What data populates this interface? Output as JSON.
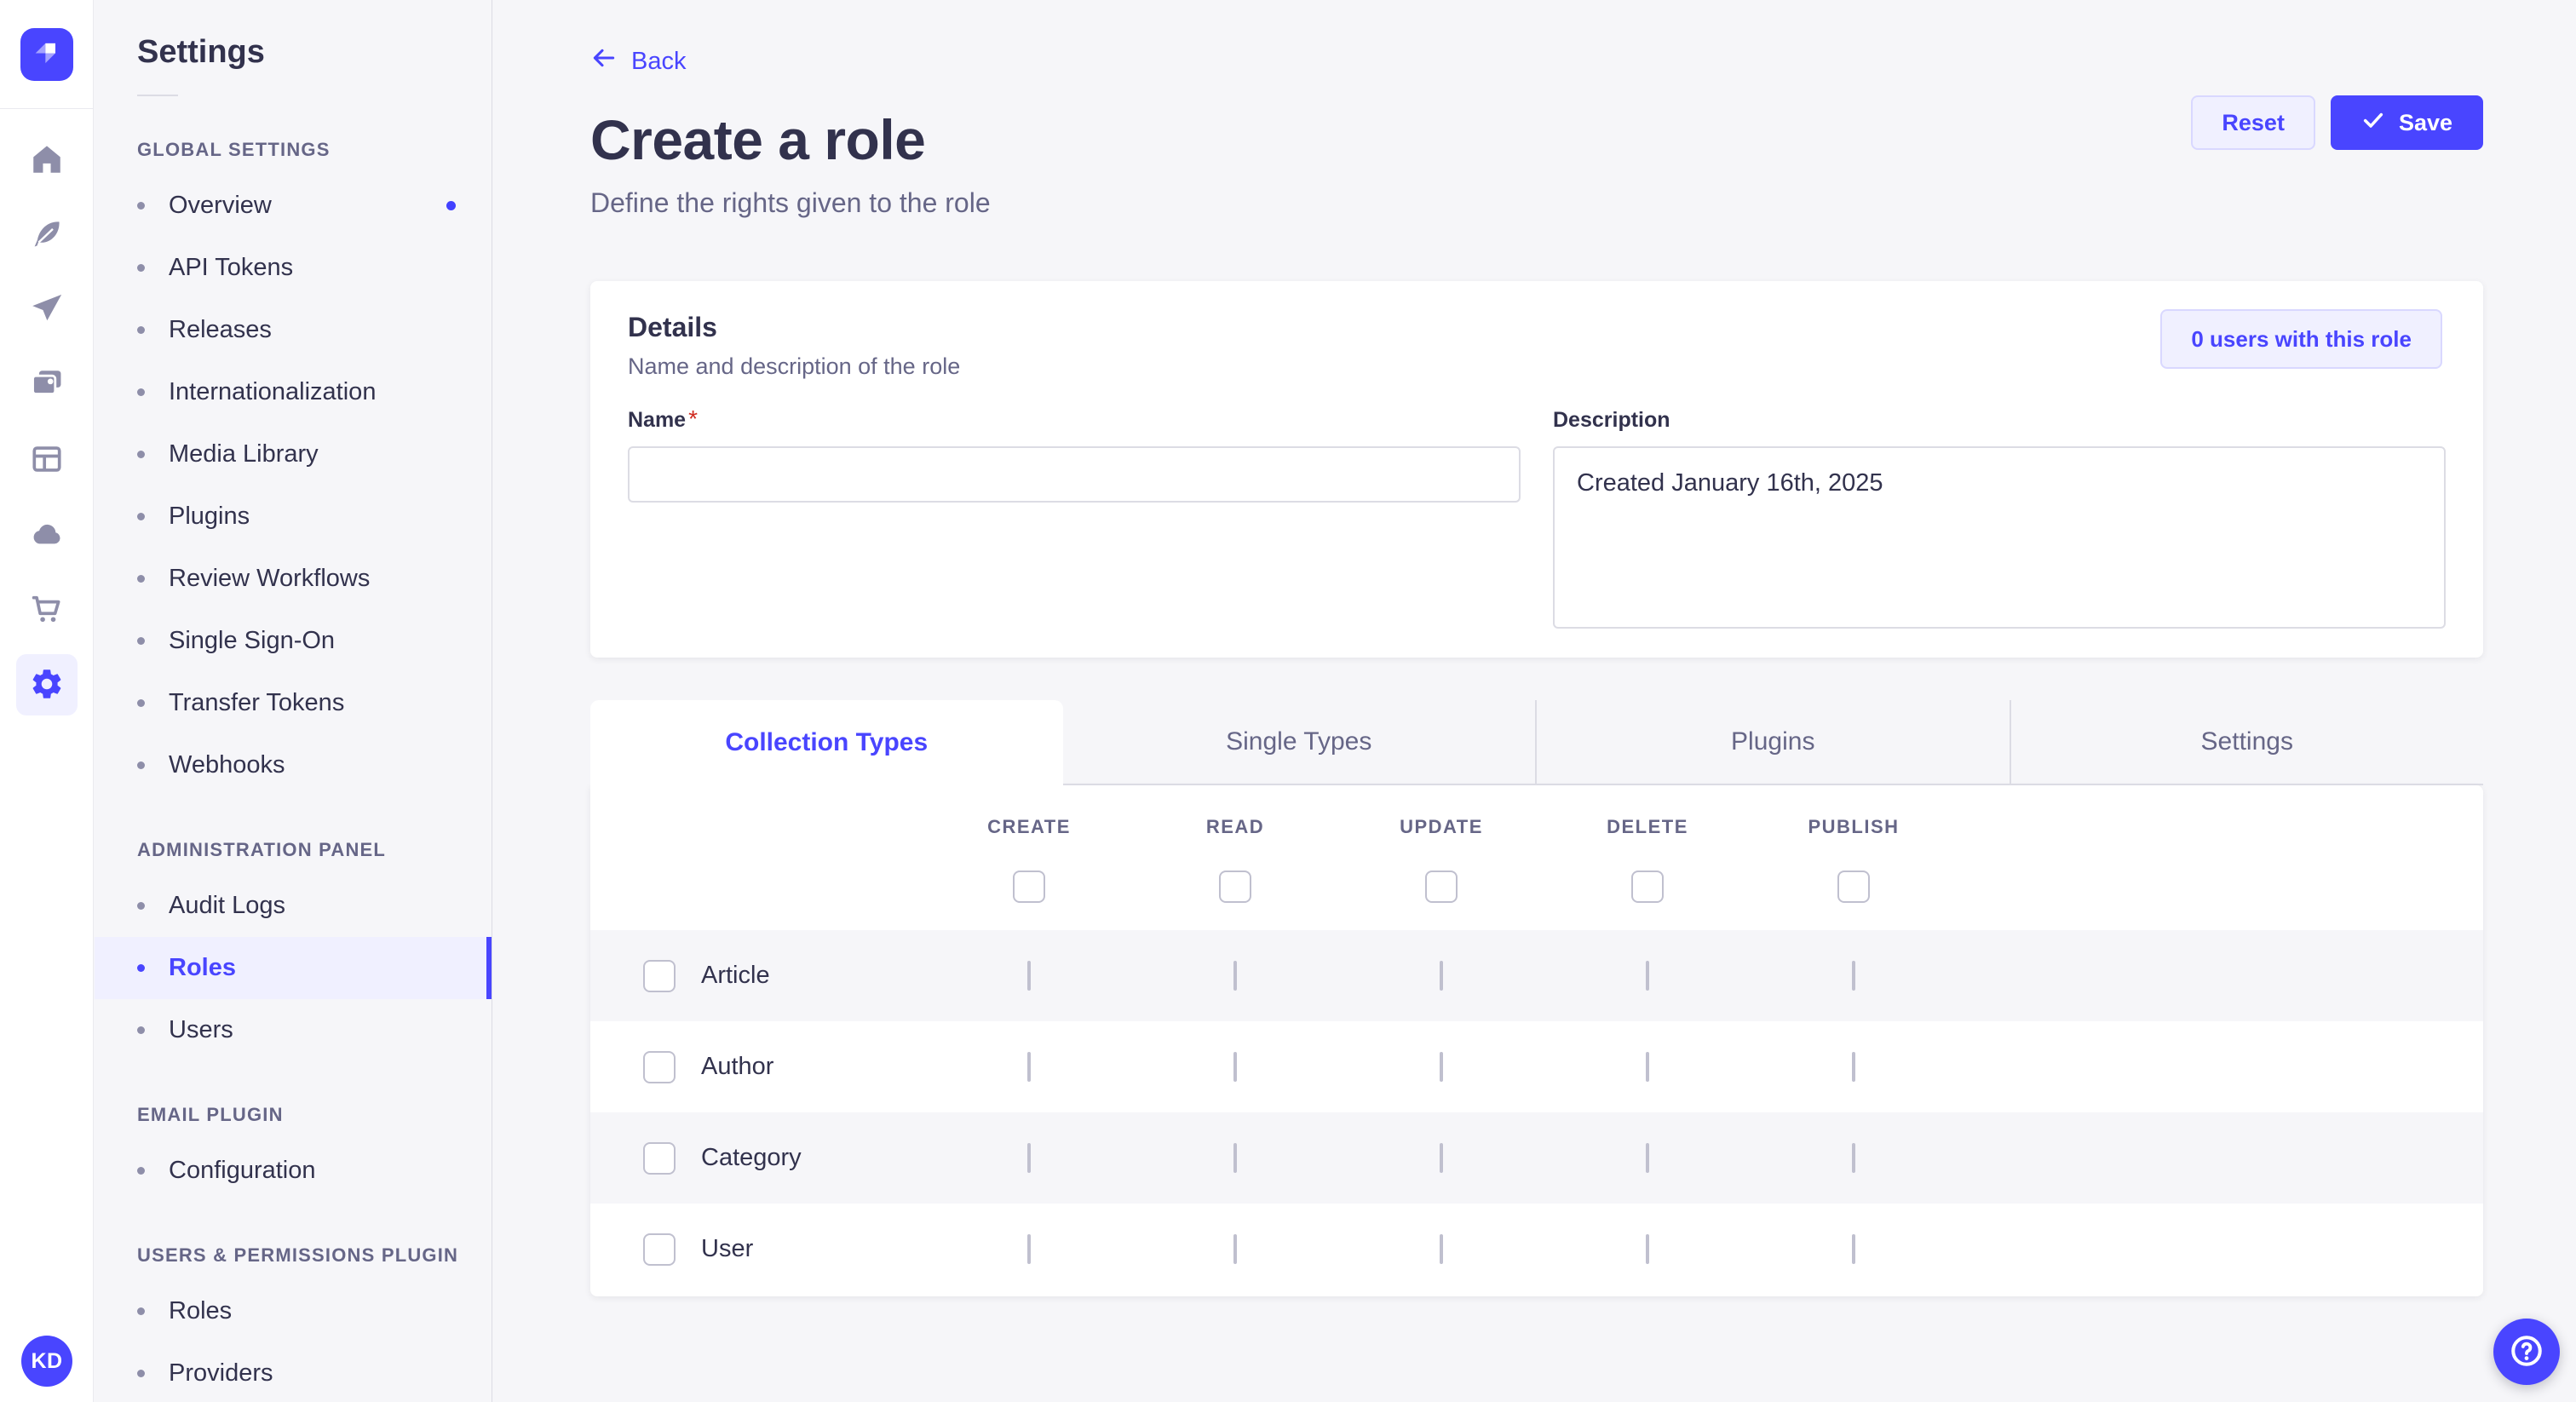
{
  "colors": {
    "primary": "#4945ff",
    "primary_light_bg": "#f0f0ff",
    "primary_light_border": "#d9d8ff",
    "page_bg": "#f6f6f9",
    "text": "#32324d",
    "text_muted": "#666687",
    "border": "#dcdce4",
    "checkbox_border": "#c0c0cf",
    "required_mark": "#d02b20"
  },
  "rail": {
    "logo_icon": "strapi-logo-icon",
    "icons": [
      "home-icon",
      "feather-icon",
      "paper-plane-icon",
      "media-icon",
      "layout-icon",
      "cloud-icon",
      "cart-icon",
      "gear-icon"
    ],
    "active_icon": "gear-icon",
    "avatar_initials": "KD"
  },
  "sidebar": {
    "title": "Settings",
    "sections": [
      {
        "label": "GLOBAL SETTINGS",
        "items": [
          {
            "label": "Overview",
            "notification_dot": true
          },
          {
            "label": "API Tokens"
          },
          {
            "label": "Releases"
          },
          {
            "label": "Internationalization"
          },
          {
            "label": "Media Library"
          },
          {
            "label": "Plugins"
          },
          {
            "label": "Review Workflows"
          },
          {
            "label": "Single Sign-On"
          },
          {
            "label": "Transfer Tokens"
          },
          {
            "label": "Webhooks"
          }
        ]
      },
      {
        "label": "ADMINISTRATION PANEL",
        "items": [
          {
            "label": "Audit Logs"
          },
          {
            "label": "Roles",
            "active": true
          },
          {
            "label": "Users"
          }
        ]
      },
      {
        "label": "EMAIL PLUGIN",
        "items": [
          {
            "label": "Configuration"
          }
        ]
      },
      {
        "label": "USERS & PERMISSIONS PLUGIN",
        "items": [
          {
            "label": "Roles"
          },
          {
            "label": "Providers"
          }
        ]
      }
    ]
  },
  "header": {
    "back_label": "Back",
    "title": "Create a role",
    "subtitle": "Define the rights given to the role",
    "reset_label": "Reset",
    "save_label": "Save"
  },
  "details_card": {
    "title": "Details",
    "subtitle": "Name and description of the role",
    "users_button_label": "0 users with this role",
    "name": {
      "label": "Name",
      "required_mark": "*",
      "value": "",
      "placeholder": ""
    },
    "description": {
      "label": "Description",
      "value": "Created January 16th, 2025"
    }
  },
  "tabs": [
    {
      "label": "Collection Types",
      "active": true
    },
    {
      "label": "Single Types",
      "active": false
    },
    {
      "label": "Plugins",
      "active": false
    },
    {
      "label": "Settings",
      "active": false
    }
  ],
  "permissions_table": {
    "columns": [
      "CREATE",
      "READ",
      "UPDATE",
      "DELETE",
      "PUBLISH"
    ],
    "rows": [
      {
        "label": "Article",
        "row_checked": false,
        "cells": [
          false,
          false,
          false,
          false,
          false
        ]
      },
      {
        "label": "Author",
        "row_checked": false,
        "cells": [
          false,
          false,
          false,
          false,
          false
        ]
      },
      {
        "label": "Category",
        "row_checked": false,
        "cells": [
          false,
          false,
          false,
          false,
          false
        ]
      },
      {
        "label": "User",
        "row_checked": false,
        "cells": [
          false,
          false,
          false,
          false,
          false
        ]
      }
    ],
    "header_select_all_checked": [
      false,
      false,
      false,
      false,
      false
    ]
  },
  "help_button": {
    "icon": "question-mark-icon"
  }
}
